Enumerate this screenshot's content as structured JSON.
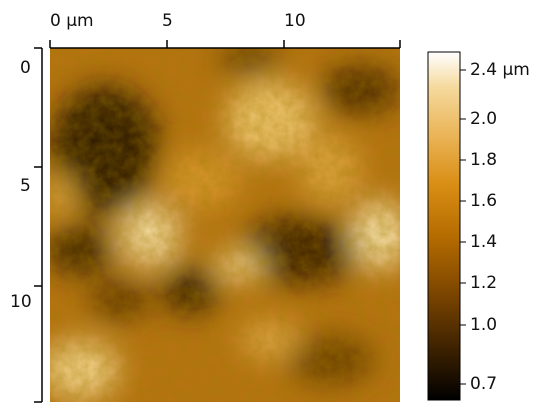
{
  "image": {
    "top_axis": {
      "unit": "µm",
      "ticks": [
        "0",
        "5",
        "10"
      ]
    },
    "left_axis": {
      "ticks": [
        "0",
        "5",
        "10"
      ]
    },
    "colorbar": {
      "labels": [
        "2.4 µm",
        "2.0",
        "1.8",
        "1.6",
        "1.4",
        "1.2",
        "1.0",
        "0.7"
      ],
      "stops": [
        "#000000",
        "#3a2000",
        "#7a4400",
        "#b56c00",
        "#d98e14",
        "#eab457",
        "#f5da9e",
        "#ffffff"
      ],
      "min": 0.7,
      "max": 2.4
    }
  }
}
